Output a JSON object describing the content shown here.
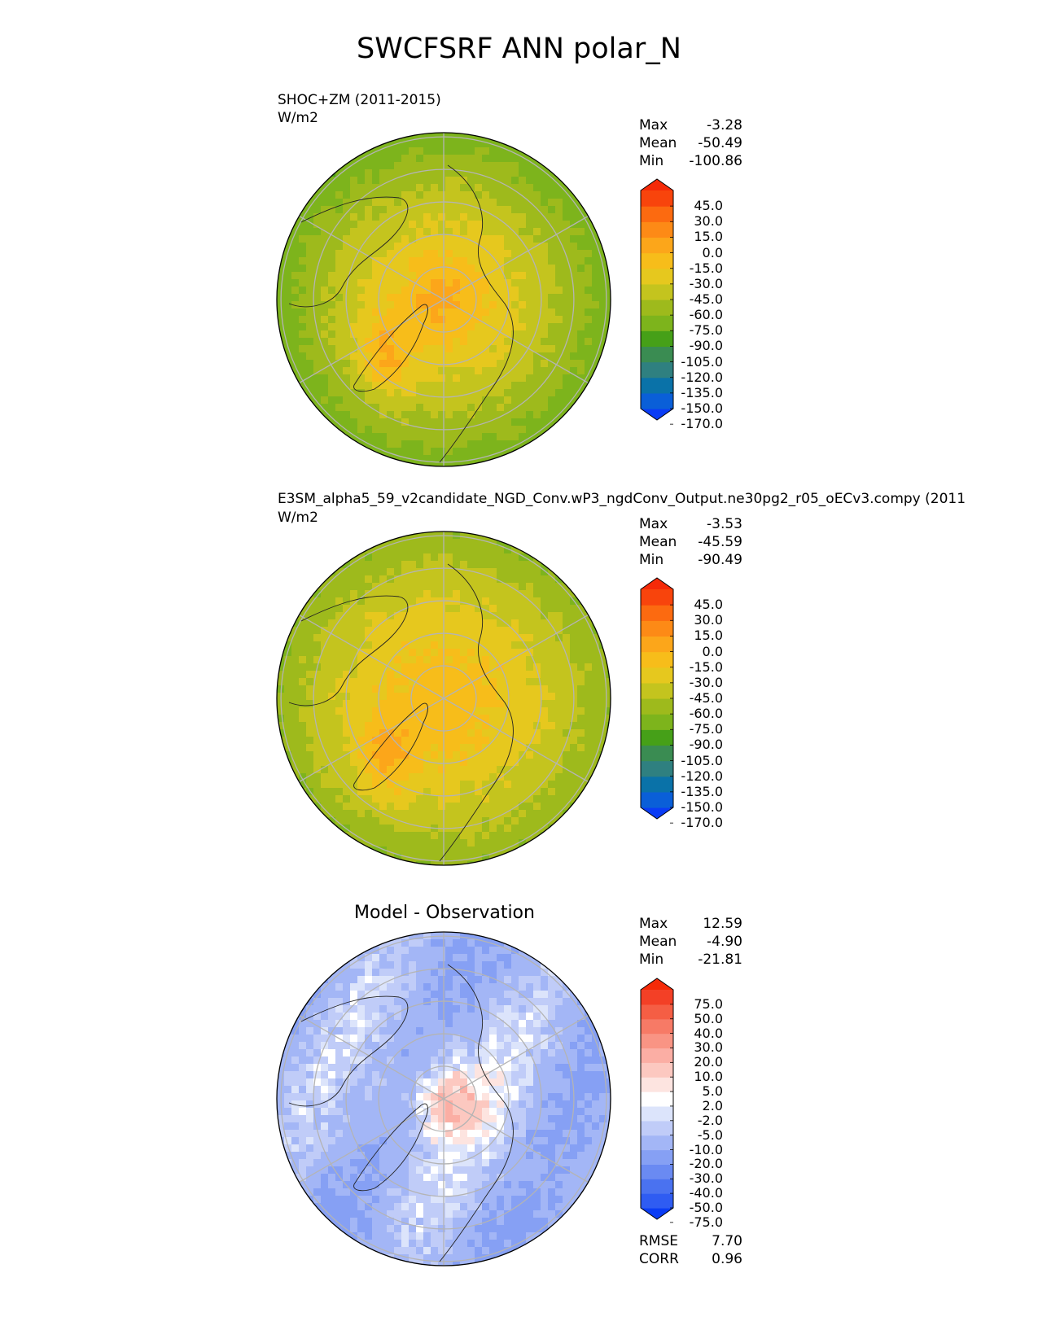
{
  "title": "SWCFSRF ANN polar_N",
  "panels": [
    {
      "kind": "test",
      "title": "SHOC+ZM (2011-2015)",
      "units": "W/m2",
      "stats": {
        "Max": "-3.28",
        "Mean": "-50.49",
        "Min": "-100.86"
      },
      "colorbar_ticks": [
        "45.0",
        "30.0",
        "15.0",
        "0.0",
        "-15.0",
        "-30.0",
        "-45.0",
        "-60.0",
        "-75.0",
        "-90.0",
        "-105.0",
        "-120.0",
        "-135.0",
        "-150.0",
        "-170.0"
      ]
    },
    {
      "kind": "ref",
      "title": "E3SM_alpha5_59_v2candidate_NGD_Conv.wP3_ngdConv_Output.ne30pg2_r05_oECv3.compy (2011",
      "units": "W/m2",
      "stats": {
        "Max": "-3.53",
        "Mean": "-45.59",
        "Min": "-90.49"
      },
      "colorbar_ticks": [
        "45.0",
        "30.0",
        "15.0",
        "0.0",
        "-15.0",
        "-30.0",
        "-45.0",
        "-60.0",
        "-75.0",
        "-90.0",
        "-105.0",
        "-120.0",
        "-135.0",
        "-150.0",
        "-170.0"
      ]
    },
    {
      "kind": "diff",
      "title": "Model - Observation",
      "stats": {
        "Max": "12.59",
        "Mean": "-4.90",
        "Min": "-21.81"
      },
      "metrics": {
        "RMSE": "7.70",
        "CORR": "0.96"
      },
      "colorbar_ticks": [
        "75.0",
        "50.0",
        "40.0",
        "30.0",
        "20.0",
        "10.0",
        "5.0",
        "2.0",
        "-2.0",
        "-5.0",
        "-10.0",
        "-20.0",
        "-30.0",
        "-40.0",
        "-50.0",
        "-75.0"
      ]
    }
  ],
  "chart_data": [
    {
      "type": "heatmap",
      "projection": "north polar stereographic",
      "title": "SHOC+ZM (2011-2015)",
      "units": "W/m2",
      "stats": {
        "max": -3.28,
        "mean": -50.49,
        "min": -100.86
      },
      "contour_levels": [
        -170,
        -150,
        -135,
        -120,
        -105,
        -90,
        -75,
        -60,
        -45,
        -30,
        -15,
        0,
        15,
        30,
        45
      ],
      "colors": [
        "#0a3cf5",
        "#0a5fd8",
        "#0a72a8",
        "#2f8080",
        "#3a8c52",
        "#46a018",
        "#7db41c",
        "#9eba1c",
        "#c4c41e",
        "#e6c81e",
        "#f7bd1a",
        "#fca61a",
        "#fd8a16",
        "#fc6a10",
        "#f8440c",
        "#f52a08"
      ]
    },
    {
      "type": "heatmap",
      "projection": "north polar stereographic",
      "title": "E3SM_alpha5_59_v2candidate_NGD_Conv.wP3_ngdConv_Output.ne30pg2_r05_oECv3.compy (2011",
      "units": "W/m2",
      "stats": {
        "max": -3.53,
        "mean": -45.59,
        "min": -90.49
      },
      "contour_levels": [
        -170,
        -150,
        -135,
        -120,
        -105,
        -90,
        -75,
        -60,
        -45,
        -30,
        -15,
        0,
        15,
        30,
        45
      ],
      "colors": [
        "#0a3cf5",
        "#0a5fd8",
        "#0a72a8",
        "#2f8080",
        "#3a8c52",
        "#46a018",
        "#7db41c",
        "#9eba1c",
        "#c4c41e",
        "#e6c81e",
        "#f7bd1a",
        "#fca61a",
        "#fd8a16",
        "#fc6a10",
        "#f8440c",
        "#f52a08"
      ]
    },
    {
      "type": "heatmap",
      "projection": "north polar stereographic",
      "title": "Model - Observation",
      "stats": {
        "max": 12.59,
        "mean": -4.9,
        "min": -21.81
      },
      "metrics": {
        "rmse": 7.7,
        "corr": 0.96
      },
      "contour_levels": [
        -75,
        -50,
        -40,
        -30,
        -20,
        -10,
        -5,
        -2,
        2,
        5,
        10,
        20,
        30,
        40,
        50,
        75
      ],
      "colors": [
        "#0a3cf5",
        "#2f5cf2",
        "#4a72f0",
        "#6a8af2",
        "#86a0f4",
        "#a3b6f6",
        "#c0ccf8",
        "#dce4fb",
        "#ffffff",
        "#fde4e0",
        "#fcc8c0",
        "#fbaea4",
        "#f99484",
        "#f77a66",
        "#f55e44",
        "#f34026",
        "#f52a08"
      ]
    }
  ]
}
